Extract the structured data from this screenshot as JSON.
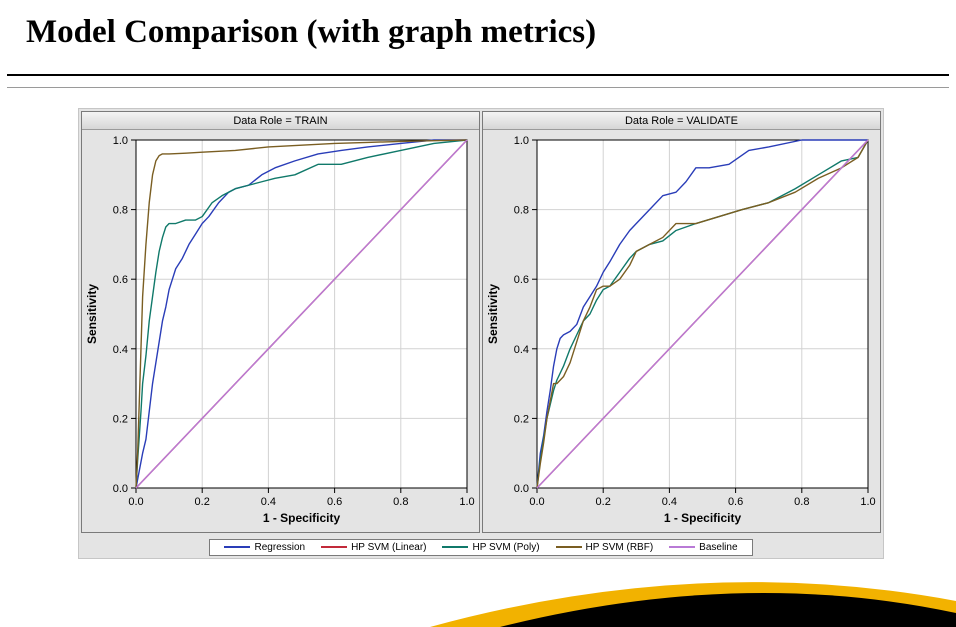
{
  "title": "Model Comparison (with graph metrics)",
  "title_fontsize": 33,
  "title_color": "#000000",
  "background": "#ffffff",
  "panel_bg": "#e4e4e4",
  "plot_bg": "#ffffff",
  "grid_color": "#d2d2d2",
  "axis_color": "#000000",
  "xlabel": "1 - Specificity",
  "ylabel": "Sensitivity",
  "xlim": [
    0.0,
    1.0
  ],
  "ylim": [
    0.0,
    1.0
  ],
  "tick_step": 0.2,
  "ticks": [
    "0.0",
    "0.2",
    "0.4",
    "0.6",
    "0.8",
    "1.0"
  ],
  "legend": {
    "items": [
      {
        "label": "Regression",
        "color": "#2a3db8"
      },
      {
        "label": "HP SVM (Linear)",
        "color": "#c22a3a"
      },
      {
        "label": "HP SVM (Poly)",
        "color": "#10796a"
      },
      {
        "label": "HP SVM (RBF)",
        "color": "#7a5e22"
      },
      {
        "label": "Baseline",
        "color": "#b97ad6"
      }
    ]
  },
  "panels": [
    {
      "header": "Data Role = TRAIN",
      "series": [
        {
          "name": "Regression",
          "color": "#2a3db8",
          "points": [
            [
              0,
              0
            ],
            [
              0.01,
              0.05
            ],
            [
              0.02,
              0.1
            ],
            [
              0.03,
              0.14
            ],
            [
              0.04,
              0.22
            ],
            [
              0.05,
              0.3
            ],
            [
              0.06,
              0.36
            ],
            [
              0.07,
              0.42
            ],
            [
              0.08,
              0.48
            ],
            [
              0.09,
              0.52
            ],
            [
              0.1,
              0.57
            ],
            [
              0.11,
              0.6
            ],
            [
              0.12,
              0.63
            ],
            [
              0.14,
              0.66
            ],
            [
              0.16,
              0.7
            ],
            [
              0.18,
              0.73
            ],
            [
              0.2,
              0.76
            ],
            [
              0.22,
              0.78
            ],
            [
              0.25,
              0.82
            ],
            [
              0.28,
              0.85
            ],
            [
              0.3,
              0.86
            ],
            [
              0.34,
              0.87
            ],
            [
              0.38,
              0.9
            ],
            [
              0.42,
              0.92
            ],
            [
              0.48,
              0.94
            ],
            [
              0.55,
              0.96
            ],
            [
              0.62,
              0.97
            ],
            [
              0.7,
              0.98
            ],
            [
              0.8,
              0.99
            ],
            [
              0.9,
              1.0
            ],
            [
              1.0,
              1.0
            ]
          ]
        },
        {
          "name": "HP SVM (Linear)",
          "color": "#c22a3a",
          "points": [
            [
              0,
              0
            ],
            [
              1,
              1
            ]
          ]
        },
        {
          "name": "HP SVM (Poly)",
          "color": "#10796a",
          "points": [
            [
              0,
              0
            ],
            [
              0.005,
              0.08
            ],
            [
              0.01,
              0.15
            ],
            [
              0.015,
              0.22
            ],
            [
              0.02,
              0.3
            ],
            [
              0.03,
              0.38
            ],
            [
              0.04,
              0.48
            ],
            [
              0.05,
              0.55
            ],
            [
              0.06,
              0.62
            ],
            [
              0.07,
              0.68
            ],
            [
              0.08,
              0.72
            ],
            [
              0.09,
              0.75
            ],
            [
              0.1,
              0.76
            ],
            [
              0.12,
              0.76
            ],
            [
              0.15,
              0.77
            ],
            [
              0.18,
              0.77
            ],
            [
              0.2,
              0.78
            ],
            [
              0.23,
              0.82
            ],
            [
              0.26,
              0.84
            ],
            [
              0.3,
              0.86
            ],
            [
              0.34,
              0.87
            ],
            [
              0.38,
              0.88
            ],
            [
              0.42,
              0.89
            ],
            [
              0.48,
              0.9
            ],
            [
              0.55,
              0.93
            ],
            [
              0.62,
              0.93
            ],
            [
              0.7,
              0.95
            ],
            [
              0.8,
              0.97
            ],
            [
              0.9,
              0.99
            ],
            [
              1.0,
              1.0
            ]
          ]
        },
        {
          "name": "HP SVM (RBF)",
          "color": "#7a5e22",
          "points": [
            [
              0,
              0
            ],
            [
              0.005,
              0.1
            ],
            [
              0.01,
              0.25
            ],
            [
              0.015,
              0.4
            ],
            [
              0.02,
              0.55
            ],
            [
              0.03,
              0.7
            ],
            [
              0.04,
              0.82
            ],
            [
              0.05,
              0.9
            ],
            [
              0.06,
              0.94
            ],
            [
              0.07,
              0.955
            ],
            [
              0.08,
              0.96
            ],
            [
              0.1,
              0.96
            ],
            [
              0.15,
              0.962
            ],
            [
              0.2,
              0.965
            ],
            [
              0.3,
              0.97
            ],
            [
              0.4,
              0.98
            ],
            [
              0.5,
              0.985
            ],
            [
              0.6,
              0.99
            ],
            [
              0.7,
              0.993
            ],
            [
              0.8,
              0.996
            ],
            [
              0.9,
              0.998
            ],
            [
              1.0,
              1.0
            ]
          ]
        },
        {
          "name": "Baseline",
          "color": "#b97ad6",
          "points": [
            [
              0,
              0
            ],
            [
              1,
              1
            ]
          ]
        }
      ]
    },
    {
      "header": "Data Role = VALIDATE",
      "series": [
        {
          "name": "Regression",
          "color": "#2a3db8",
          "points": [
            [
              0,
              0
            ],
            [
              0.005,
              0.05
            ],
            [
              0.01,
              0.1
            ],
            [
              0.02,
              0.15
            ],
            [
              0.03,
              0.22
            ],
            [
              0.04,
              0.28
            ],
            [
              0.05,
              0.35
            ],
            [
              0.06,
              0.4
            ],
            [
              0.07,
              0.43
            ],
            [
              0.08,
              0.44
            ],
            [
              0.1,
              0.45
            ],
            [
              0.12,
              0.47
            ],
            [
              0.14,
              0.52
            ],
            [
              0.16,
              0.55
            ],
            [
              0.18,
              0.58
            ],
            [
              0.2,
              0.62
            ],
            [
              0.22,
              0.65
            ],
            [
              0.25,
              0.7
            ],
            [
              0.28,
              0.74
            ],
            [
              0.3,
              0.76
            ],
            [
              0.34,
              0.8
            ],
            [
              0.38,
              0.84
            ],
            [
              0.42,
              0.85
            ],
            [
              0.45,
              0.88
            ],
            [
              0.48,
              0.92
            ],
            [
              0.52,
              0.92
            ],
            [
              0.58,
              0.93
            ],
            [
              0.64,
              0.97
            ],
            [
              0.7,
              0.98
            ],
            [
              0.8,
              1.0
            ],
            [
              0.9,
              1.0
            ],
            [
              1.0,
              1.0
            ]
          ]
        },
        {
          "name": "HP SVM (Linear)",
          "color": "#c22a3a",
          "points": [
            [
              0,
              0
            ],
            [
              1,
              1
            ]
          ]
        },
        {
          "name": "HP SVM (Poly)",
          "color": "#10796a",
          "points": [
            [
              0,
              0
            ],
            [
              0.01,
              0.08
            ],
            [
              0.02,
              0.14
            ],
            [
              0.03,
              0.2
            ],
            [
              0.04,
              0.24
            ],
            [
              0.05,
              0.28
            ],
            [
              0.06,
              0.31
            ],
            [
              0.08,
              0.35
            ],
            [
              0.1,
              0.4
            ],
            [
              0.12,
              0.44
            ],
            [
              0.14,
              0.48
            ],
            [
              0.16,
              0.5
            ],
            [
              0.18,
              0.54
            ],
            [
              0.2,
              0.57
            ],
            [
              0.22,
              0.58
            ],
            [
              0.25,
              0.62
            ],
            [
              0.28,
              0.66
            ],
            [
              0.3,
              0.68
            ],
            [
              0.34,
              0.7
            ],
            [
              0.38,
              0.71
            ],
            [
              0.42,
              0.74
            ],
            [
              0.48,
              0.76
            ],
            [
              0.55,
              0.78
            ],
            [
              0.62,
              0.8
            ],
            [
              0.7,
              0.82
            ],
            [
              0.78,
              0.86
            ],
            [
              0.85,
              0.9
            ],
            [
              0.92,
              0.94
            ],
            [
              0.97,
              0.95
            ],
            [
              1.0,
              1.0
            ]
          ]
        },
        {
          "name": "HP SVM (RBF)",
          "color": "#7a5e22",
          "points": [
            [
              0,
              0
            ],
            [
              0.01,
              0.07
            ],
            [
              0.02,
              0.13
            ],
            [
              0.03,
              0.2
            ],
            [
              0.04,
              0.25
            ],
            [
              0.05,
              0.3
            ],
            [
              0.06,
              0.3
            ],
            [
              0.08,
              0.32
            ],
            [
              0.1,
              0.36
            ],
            [
              0.12,
              0.42
            ],
            [
              0.14,
              0.48
            ],
            [
              0.16,
              0.52
            ],
            [
              0.18,
              0.57
            ],
            [
              0.2,
              0.58
            ],
            [
              0.22,
              0.58
            ],
            [
              0.25,
              0.6
            ],
            [
              0.28,
              0.64
            ],
            [
              0.3,
              0.68
            ],
            [
              0.34,
              0.7
            ],
            [
              0.38,
              0.72
            ],
            [
              0.42,
              0.76
            ],
            [
              0.48,
              0.76
            ],
            [
              0.55,
              0.78
            ],
            [
              0.62,
              0.8
            ],
            [
              0.7,
              0.82
            ],
            [
              0.78,
              0.85
            ],
            [
              0.85,
              0.89
            ],
            [
              0.92,
              0.92
            ],
            [
              0.97,
              0.95
            ],
            [
              1.0,
              1.0
            ]
          ]
        },
        {
          "name": "Baseline",
          "color": "#b97ad6",
          "points": [
            [
              0,
              0
            ],
            [
              1,
              1
            ]
          ]
        }
      ]
    }
  ],
  "decor": {
    "gold": "#f2b200",
    "black": "#000000"
  }
}
